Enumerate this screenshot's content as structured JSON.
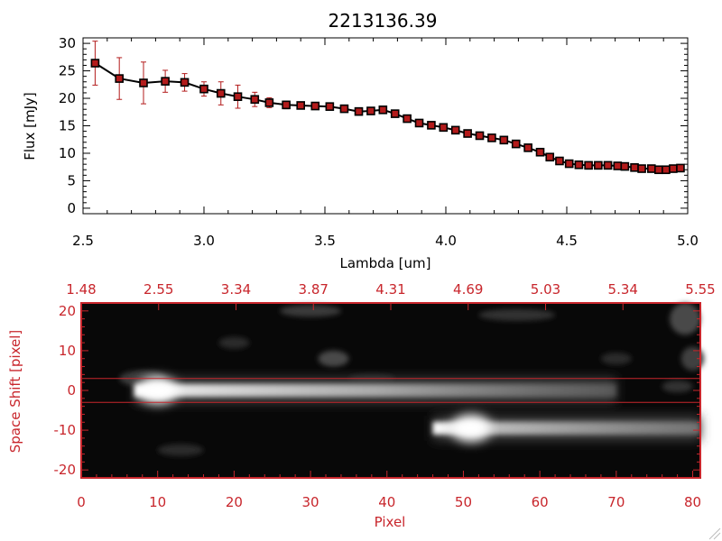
{
  "title": "2213136.39",
  "colors": {
    "data": "#b31b1b",
    "axis_red": "#c8262c",
    "line": "#000000"
  },
  "chart_data": [
    {
      "type": "line",
      "title": "2213136.39",
      "xlabel": "Lambda [um]",
      "ylabel": "Flux [mJy]",
      "xlim": [
        2.5,
        5.0
      ],
      "ylim": [
        -1,
        31
      ],
      "xticks": [
        "2.5",
        "3.0",
        "3.5",
        "4.0",
        "4.5",
        "5.0"
      ],
      "yticks": [
        "0",
        "5",
        "10",
        "15",
        "20",
        "25",
        "30"
      ],
      "series": [
        {
          "x": [
            2.55,
            2.65,
            2.75,
            2.84,
            2.92,
            3.0,
            3.07,
            3.14,
            3.21,
            3.27,
            3.34,
            3.4,
            3.46,
            3.52,
            3.58,
            3.64,
            3.69,
            3.74,
            3.79,
            3.84,
            3.89,
            3.94,
            3.99,
            4.04,
            4.09,
            4.14,
            4.19,
            4.24,
            4.29,
            4.34,
            4.39,
            4.43,
            4.47,
            4.51,
            4.55,
            4.59,
            4.63,
            4.67,
            4.71,
            4.74,
            4.78,
            4.81,
            4.85,
            4.88,
            4.91,
            4.94,
            4.97
          ],
          "y": [
            26.4,
            23.6,
            22.8,
            23.1,
            22.9,
            21.7,
            20.9,
            20.3,
            19.8,
            19.2,
            18.8,
            18.7,
            18.6,
            18.5,
            18.1,
            17.6,
            17.7,
            17.9,
            17.2,
            16.3,
            15.5,
            15.1,
            14.7,
            14.2,
            13.6,
            13.2,
            12.8,
            12.4,
            11.7,
            11.0,
            10.2,
            9.3,
            8.6,
            8.1,
            7.9,
            7.8,
            7.8,
            7.8,
            7.7,
            7.6,
            7.4,
            7.2,
            7.2,
            7.0,
            7.0,
            7.2,
            7.3
          ],
          "yerr": [
            4.0,
            3.8,
            3.8,
            2.0,
            1.6,
            1.3,
            2.1,
            2.1,
            1.3,
            0.9,
            0.7,
            0.3,
            0.2,
            0.2,
            0.2,
            0.2,
            0.2,
            0.2,
            0.2,
            0.2,
            0.2,
            0.2,
            0.2,
            0.2,
            0.2,
            0.2,
            0.2,
            0.2,
            0.2,
            0.2,
            0.2,
            0.2,
            0.2,
            0.2,
            0.2,
            0.2,
            0.2,
            0.2,
            0.2,
            0.2,
            0.2,
            0.2,
            0.2,
            0.2,
            0.2,
            0.2,
            0.2
          ]
        }
      ]
    },
    {
      "type": "heatmap",
      "xlabel": "Pixel",
      "ylabel": "Space Shift [pixel]",
      "xlim": [
        0,
        81
      ],
      "ylim": [
        -22,
        22
      ],
      "xticks": [
        "0",
        "10",
        "20",
        "30",
        "40",
        "50",
        "60",
        "70",
        "80"
      ],
      "yticks": [
        "20",
        "10",
        "0",
        "-10",
        "-20"
      ],
      "top_axis_ticks": [
        "1.48",
        "2.55",
        "3.34",
        "3.87",
        "4.31",
        "4.69",
        "5.03",
        "5.34",
        "5.55"
      ],
      "extraction_window": [
        -3,
        3
      ],
      "sources": [
        {
          "x_start": 7,
          "x_end": 70,
          "y_center": 0,
          "peak_x": 10
        },
        {
          "x_start": 46,
          "x_end": 81,
          "y_center": -9.5,
          "peak_x": 51
        }
      ]
    }
  ]
}
